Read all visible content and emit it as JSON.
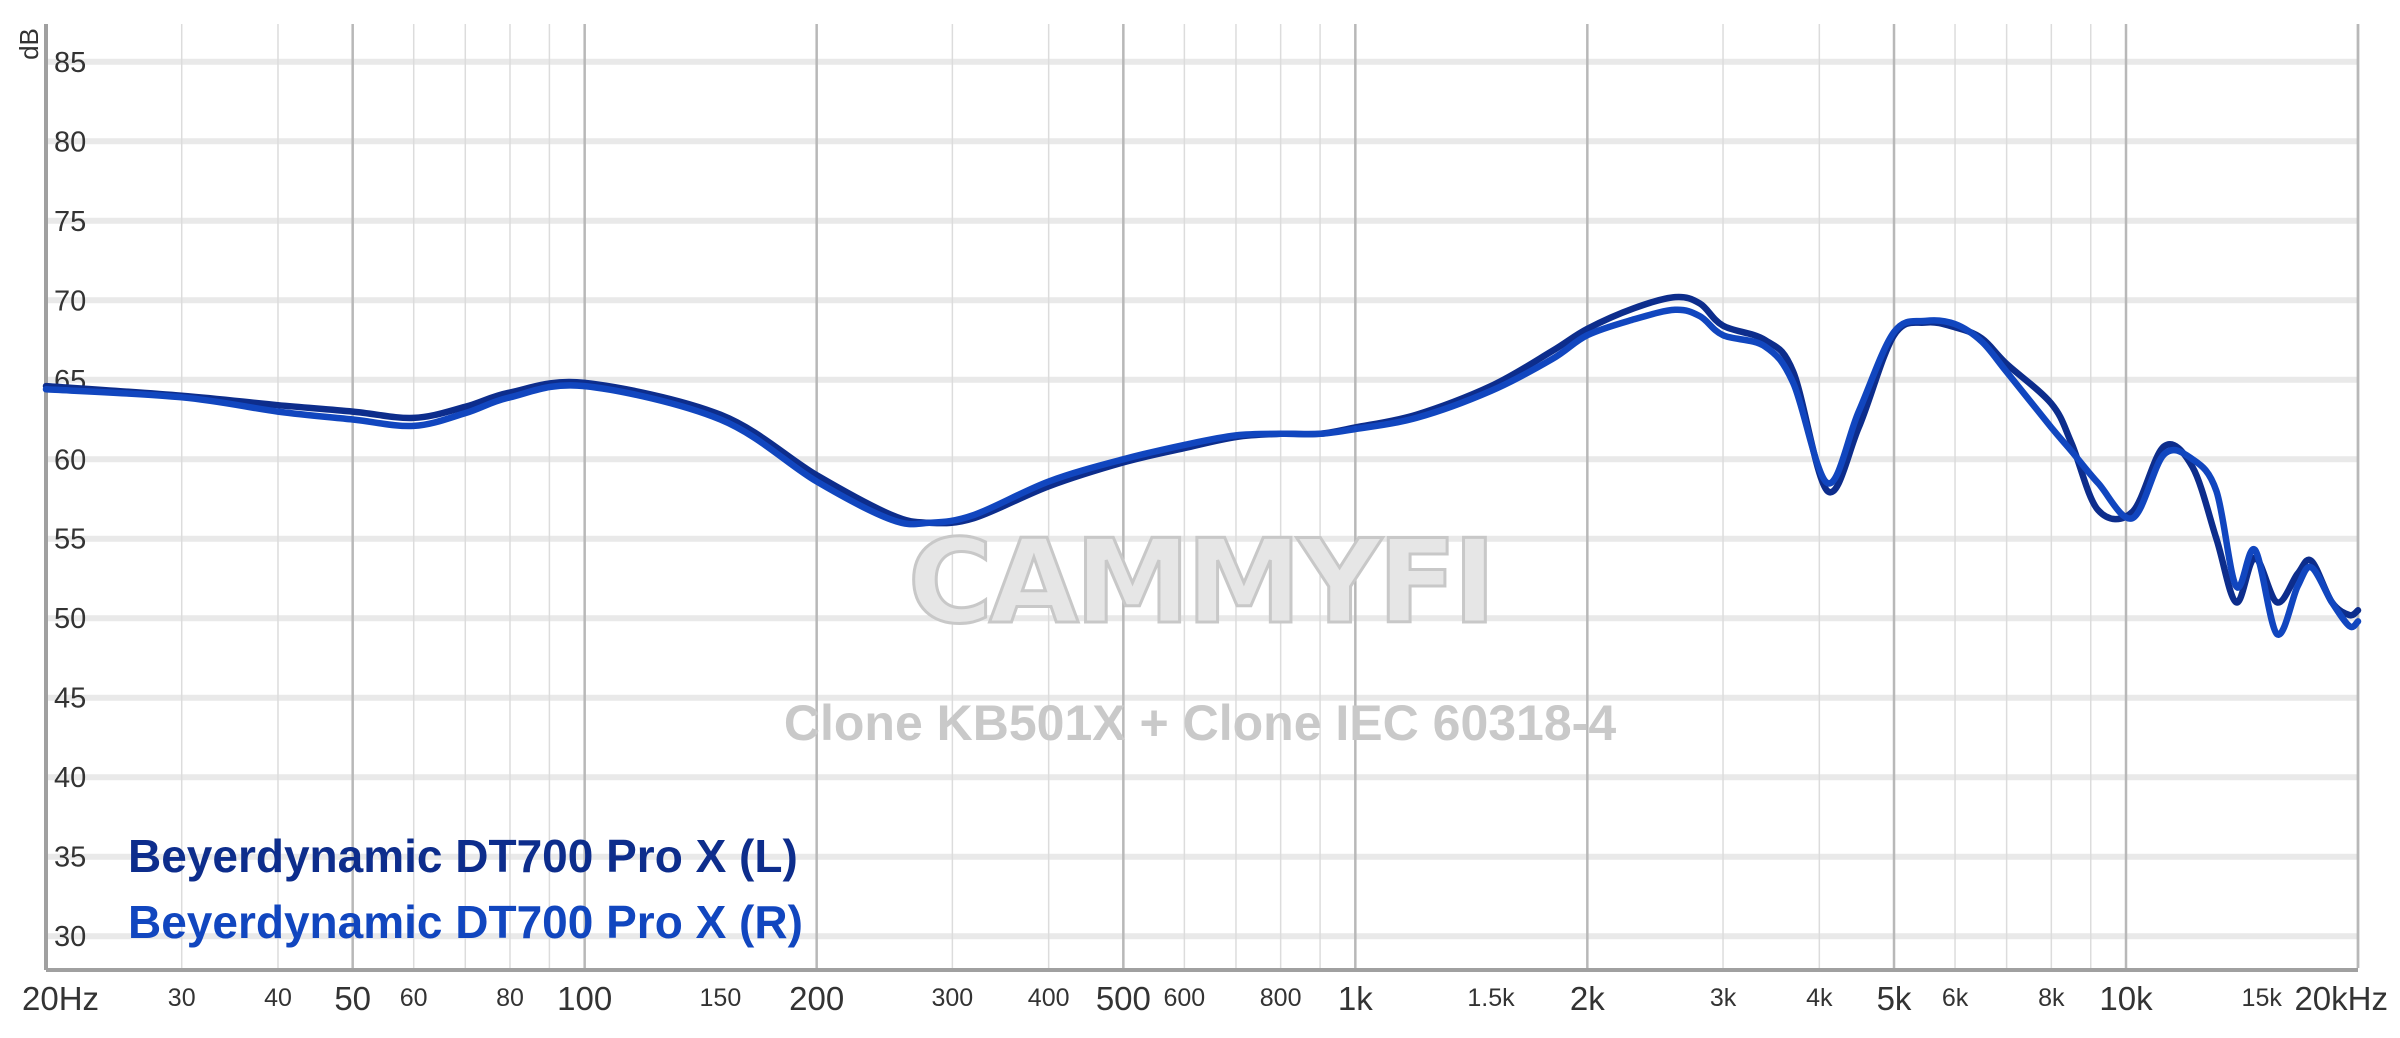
{
  "chart_data": {
    "type": "line",
    "title": "",
    "xlabel": "",
    "ylabel": "dB",
    "x_scale": "log",
    "xlim": [
      20,
      20000
    ],
    "ylim": [
      28,
      87
    ],
    "grid": true,
    "y_ticks": [
      "85",
      "80",
      "75",
      "70",
      "65",
      "60",
      "55",
      "50",
      "45",
      "40",
      "35",
      "30"
    ],
    "x_ticks": [
      {
        "value": 20,
        "label": "20Hz",
        "major": true
      },
      {
        "value": 30,
        "label": "30",
        "major": false
      },
      {
        "value": 40,
        "label": "40",
        "major": false
      },
      {
        "value": 50,
        "label": "50",
        "major": true
      },
      {
        "value": 60,
        "label": "60",
        "major": false
      },
      {
        "value": 80,
        "label": "80",
        "major": false
      },
      {
        "value": 100,
        "label": "100",
        "major": true
      },
      {
        "value": 150,
        "label": "150",
        "major": false
      },
      {
        "value": 200,
        "label": "200",
        "major": true
      },
      {
        "value": 300,
        "label": "300",
        "major": false
      },
      {
        "value": 400,
        "label": "400",
        "major": false
      },
      {
        "value": 500,
        "label": "500",
        "major": true
      },
      {
        "value": 600,
        "label": "600",
        "major": false
      },
      {
        "value": 800,
        "label": "800",
        "major": false
      },
      {
        "value": 1000,
        "label": "1k",
        "major": true
      },
      {
        "value": 1500,
        "label": "1.5k",
        "major": false
      },
      {
        "value": 2000,
        "label": "2k",
        "major": true
      },
      {
        "value": 3000,
        "label": "3k",
        "major": false
      },
      {
        "value": 4000,
        "label": "4k",
        "major": false
      },
      {
        "value": 5000,
        "label": "5k",
        "major": true
      },
      {
        "value": 6000,
        "label": "6k",
        "major": false
      },
      {
        "value": 8000,
        "label": "8k",
        "major": false
      },
      {
        "value": 10000,
        "label": "10k",
        "major": true
      },
      {
        "value": 15000,
        "label": "15k",
        "major": false
      },
      {
        "value": 20000,
        "label": "20kHz",
        "major": true
      }
    ],
    "watermark": "CAMMYFI",
    "annotation": "Clone KB501X + Clone IEC 60318-4",
    "legend_position": "bottom-left",
    "series": [
      {
        "name": "Beyerdynamic DT700 Pro X (L)",
        "color": "#0d2d8c",
        "points": [
          [
            20,
            64.6
          ],
          [
            30,
            64
          ],
          [
            40,
            63.4
          ],
          [
            50,
            63
          ],
          [
            60,
            62.6
          ],
          [
            70,
            63.3
          ],
          [
            80,
            64.2
          ],
          [
            100,
            64.8
          ],
          [
            150,
            62.8
          ],
          [
            200,
            59
          ],
          [
            250,
            56.5
          ],
          [
            280,
            56
          ],
          [
            320,
            56.3
          ],
          [
            400,
            58.3
          ],
          [
            500,
            59.8
          ],
          [
            600,
            60.7
          ],
          [
            700,
            61.4
          ],
          [
            800,
            61.6
          ],
          [
            900,
            61.6
          ],
          [
            1000,
            62
          ],
          [
            1200,
            62.8
          ],
          [
            1500,
            64.6
          ],
          [
            1800,
            66.8
          ],
          [
            2000,
            68.2
          ],
          [
            2300,
            69.5
          ],
          [
            2600,
            70.2
          ],
          [
            2800,
            69.8
          ],
          [
            3000,
            68.4
          ],
          [
            3400,
            67.5
          ],
          [
            3700,
            65.5
          ],
          [
            4100,
            58
          ],
          [
            4500,
            62
          ],
          [
            5000,
            67.8
          ],
          [
            5500,
            68.6
          ],
          [
            6000,
            68.3
          ],
          [
            6500,
            67.6
          ],
          [
            7000,
            66
          ],
          [
            8000,
            63.5
          ],
          [
            8500,
            61
          ],
          [
            9200,
            56.8
          ],
          [
            10200,
            56.7
          ],
          [
            11200,
            60.8
          ],
          [
            12200,
            59.5
          ],
          [
            13100,
            55
          ],
          [
            13900,
            51
          ],
          [
            14700,
            53.8
          ],
          [
            15700,
            51
          ],
          [
            16700,
            52.8
          ],
          [
            17400,
            53.6
          ],
          [
            18500,
            51
          ],
          [
            19500,
            50.2
          ],
          [
            20000,
            50.5
          ]
        ]
      },
      {
        "name": "Beyerdynamic DT700 Pro X (R)",
        "color": "#1146bf",
        "points": [
          [
            20,
            64.4
          ],
          [
            30,
            63.9
          ],
          [
            40,
            63
          ],
          [
            50,
            62.5
          ],
          [
            60,
            62.1
          ],
          [
            70,
            62.9
          ],
          [
            80,
            63.9
          ],
          [
            100,
            64.6
          ],
          [
            150,
            62.5
          ],
          [
            200,
            58.6
          ],
          [
            250,
            56.2
          ],
          [
            280,
            56
          ],
          [
            320,
            56.5
          ],
          [
            400,
            58.6
          ],
          [
            500,
            60
          ],
          [
            600,
            60.9
          ],
          [
            700,
            61.5
          ],
          [
            800,
            61.6
          ],
          [
            900,
            61.6
          ],
          [
            1000,
            61.9
          ],
          [
            1200,
            62.6
          ],
          [
            1500,
            64.3
          ],
          [
            1800,
            66.3
          ],
          [
            2000,
            67.8
          ],
          [
            2300,
            68.8
          ],
          [
            2600,
            69.4
          ],
          [
            2800,
            69
          ],
          [
            3000,
            67.8
          ],
          [
            3400,
            67.1
          ],
          [
            3700,
            64.8
          ],
          [
            4100,
            58.5
          ],
          [
            4500,
            63
          ],
          [
            5000,
            68
          ],
          [
            5500,
            68.7
          ],
          [
            6000,
            68.5
          ],
          [
            6500,
            67.4
          ],
          [
            7000,
            65.5
          ],
          [
            8000,
            62
          ],
          [
            8500,
            60.5
          ],
          [
            9200,
            58.5
          ],
          [
            10200,
            56.3
          ],
          [
            11200,
            60.3
          ],
          [
            12200,
            60
          ],
          [
            13100,
            58
          ],
          [
            13900,
            52
          ],
          [
            14700,
            54.3
          ],
          [
            15700,
            49
          ],
          [
            16700,
            52
          ],
          [
            17400,
            53.2
          ],
          [
            18500,
            51
          ],
          [
            19500,
            49.5
          ],
          [
            20000,
            49.8
          ]
        ]
      }
    ]
  }
}
